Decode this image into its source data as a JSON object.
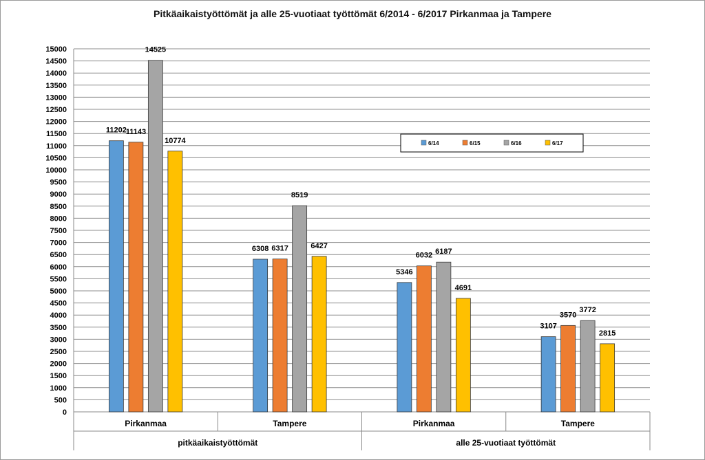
{
  "chart_data": {
    "type": "bar",
    "title": "Pitkäaikaistyöttömät ja alle 25-vuotiaat työttömät 6/2014 - 6/2017 Pirkanmaa ja Tampere",
    "groups": [
      {
        "label": "pitkäaikaistyöttömät",
        "categories": [
          "Pirkanmaa",
          "Tampere"
        ]
      },
      {
        "label": "alle 25-vuotiaat työttömät",
        "categories": [
          "Pirkanmaa",
          "Tampere"
        ]
      }
    ],
    "categories": [
      "Pirkanmaa",
      "Tampere",
      "Pirkanmaa",
      "Tampere"
    ],
    "series": [
      {
        "name": "6/14",
        "color": "#5B9BD5",
        "values": [
          11202,
          6308,
          5346,
          3107
        ]
      },
      {
        "name": "6/15",
        "color": "#ED7D31",
        "values": [
          11143,
          6317,
          6032,
          3570
        ]
      },
      {
        "name": "6/16",
        "color": "#A5A5A5",
        "values": [
          14525,
          8519,
          6187,
          3772
        ]
      },
      {
        "name": "6/17",
        "color": "#FFC000",
        "values": [
          10774,
          6427,
          4691,
          2815
        ]
      }
    ],
    "ylim": [
      0,
      15000
    ],
    "ytick_step": 500,
    "grid": true,
    "legend": "inside upper-right"
  }
}
